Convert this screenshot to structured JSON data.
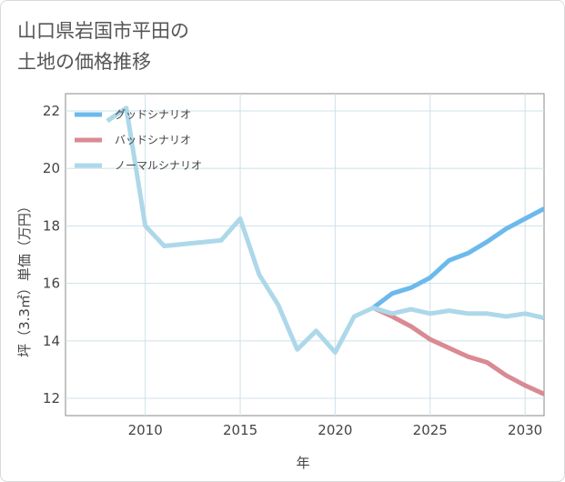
{
  "title_line1": "山口県岩国市平田の",
  "title_line2": "土地の価格推移",
  "chart_data": {
    "type": "line",
    "xlabel": "年",
    "ylabel": "坪（3.3㎡）単価（万円）",
    "xlim": [
      2005.8,
      2031
    ],
    "ylim": [
      11.4,
      22.6
    ],
    "xticks": [
      2010,
      2015,
      2020,
      2025,
      2030
    ],
    "yticks": [
      12,
      14,
      16,
      18,
      20,
      22
    ],
    "grid": true,
    "legend_position": "top-left",
    "series": [
      {
        "name": "グッドシナリオ",
        "color": "#6cb9ec",
        "x": [
          2022,
          2023,
          2024,
          2025,
          2026,
          2027,
          2028,
          2029,
          2030,
          2031
        ],
        "y": [
          15.15,
          15.65,
          15.85,
          16.2,
          16.8,
          17.05,
          17.45,
          17.9,
          18.25,
          18.6
        ]
      },
      {
        "name": "バッドシナリオ",
        "color": "#d98a92",
        "x": [
          2022,
          2023,
          2024,
          2025,
          2026,
          2027,
          2028,
          2029,
          2030,
          2031
        ],
        "y": [
          15.15,
          14.85,
          14.5,
          14.05,
          13.75,
          13.45,
          13.25,
          12.8,
          12.45,
          12.15
        ]
      },
      {
        "name": "ノーマルシナリオ",
        "color": "#add8ea",
        "x": [
          2008,
          2009,
          2010,
          2011,
          2014,
          2015,
          2016,
          2017,
          2018,
          2019,
          2020,
          2021,
          2022,
          2023,
          2024,
          2025,
          2026,
          2027,
          2028,
          2029,
          2030,
          2031
        ],
        "y": [
          21.65,
          22.1,
          18.0,
          17.3,
          17.5,
          18.25,
          16.3,
          15.25,
          13.7,
          14.35,
          13.6,
          14.85,
          15.15,
          14.95,
          15.1,
          14.95,
          15.05,
          14.95,
          14.95,
          14.85,
          14.95,
          14.8
        ]
      }
    ]
  }
}
